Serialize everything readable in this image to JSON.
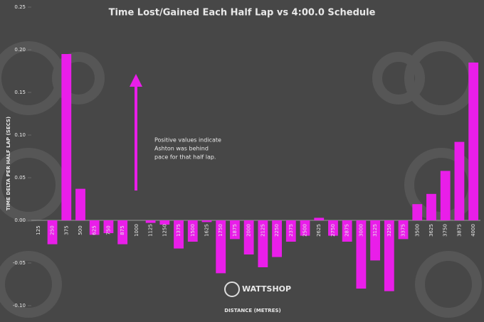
{
  "chart_data": {
    "type": "bar",
    "title": "Time Lost/Gained Each Half Lap vs 4:00.0 Schedule",
    "x_label": "DISTANCE (METRES)",
    "y_label": "TIME DELTA PER HALF LAP (SECS)",
    "annotation": [
      "Positive values indicate",
      "Ashton was behind",
      "pace for that half lap."
    ],
    "logo": "WATTSHOP",
    "color": "#e91ee9",
    "categories": [
      "125",
      "250",
      "375",
      "500",
      "625",
      "750",
      "875",
      "1000",
      "1125",
      "1250",
      "1375",
      "1500",
      "1625",
      "1750",
      "1875",
      "2000",
      "2125",
      "2250",
      "2375",
      "2500",
      "2625",
      "2750",
      "2875",
      "3000",
      "3125",
      "3250",
      "3375",
      "3500",
      "3625",
      "3750",
      "3875",
      "4000"
    ],
    "values": [
      0,
      -0.028,
      0.195,
      0.037,
      -0.017,
      -0.015,
      -0.028,
      0,
      -0.003,
      -0.005,
      -0.033,
      -0.025,
      -0.002,
      -0.062,
      -0.022,
      -0.04,
      -0.055,
      -0.043,
      -0.025,
      -0.018,
      0.003,
      -0.018,
      -0.025,
      -0.08,
      -0.047,
      -0.083,
      -0.022,
      0.019,
      0.031,
      0.058,
      0.092,
      0.185
    ],
    "ylim": [
      -0.1,
      0.25
    ],
    "yticks": [
      {
        "value": -0.1,
        "label": "-0.10"
      },
      -0.05,
      {
        "value": 0,
        "label": "0.00"
      },
      0.05,
      {
        "value": 0.1,
        "label": "0.10"
      },
      0.15,
      {
        "value": 0.2,
        "label": "0.20"
      },
      0.25
    ],
    "grid": false
  }
}
